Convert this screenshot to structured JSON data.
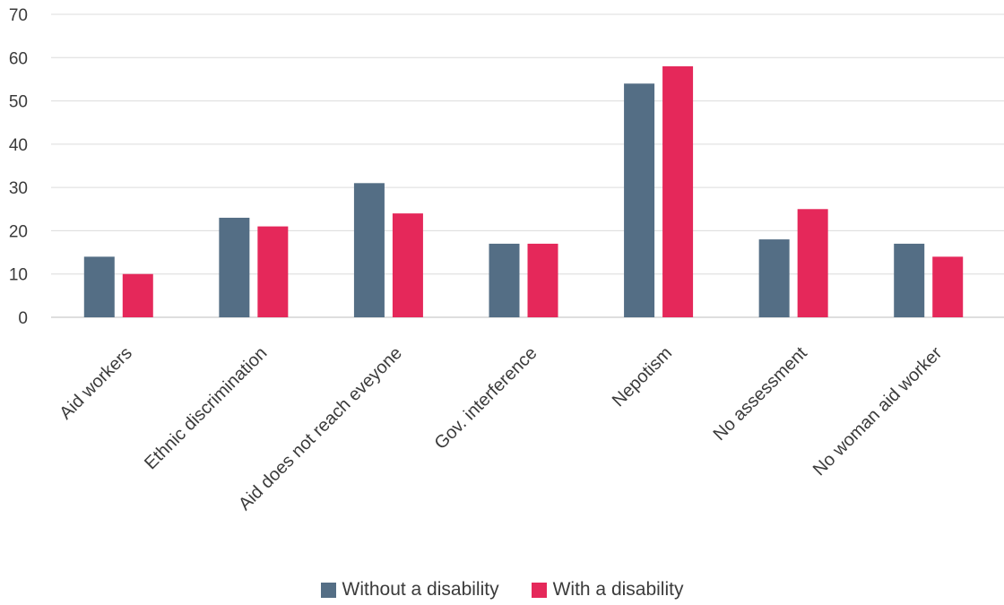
{
  "chart_data": {
    "type": "bar",
    "categories": [
      "Aid workers",
      "Ethnic discrimination",
      "Aid does not reach eveyone",
      "Gov. interference",
      "Nepotism",
      "No assessment",
      "No woman aid worker"
    ],
    "series": [
      {
        "name": "Without a disability",
        "color": "#546e85",
        "values": [
          14,
          23,
          31,
          17,
          54,
          18,
          17
        ]
      },
      {
        "name": "With a disability",
        "color": "#e5285a",
        "values": [
          10,
          21,
          24,
          17,
          58,
          25,
          14
        ]
      }
    ],
    "yticks": [
      "0",
      "10",
      "20",
      "30",
      "40",
      "50",
      "60",
      "70"
    ],
    "ylim": [
      0,
      70
    ],
    "grid": true,
    "legend_position": "bottom-center"
  }
}
